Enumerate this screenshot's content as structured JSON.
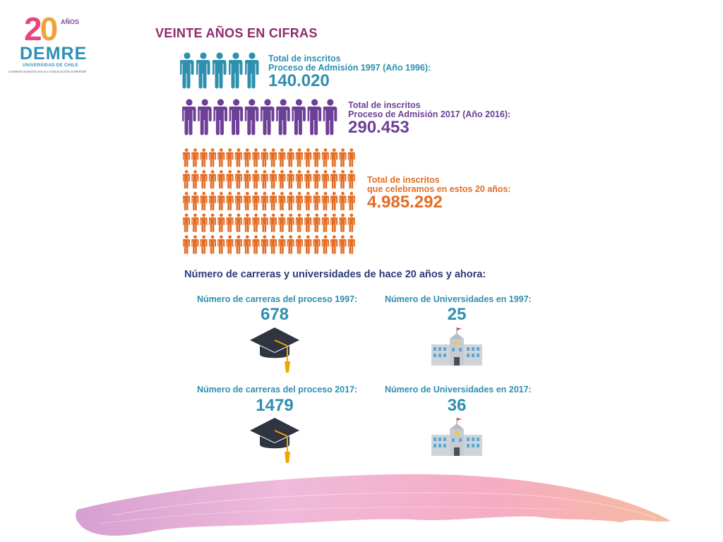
{
  "logo": {
    "twenty_2": "2",
    "twenty_0": "0",
    "anos": "AÑOS",
    "name": "DEMRE",
    "university": "UNIVERSIDAD DE CHILE",
    "tagline": "CAMINOS NUEVOS HACIA LA EDUCACIÓN SUPERIOR"
  },
  "title": "VEINTE AÑOS EN CIFRAS",
  "groups": [
    {
      "label_line1": "Total de inscritos",
      "label_line2": "Proceso de Admisión 1997  (Año 1996):",
      "value": "140.020",
      "color": "#2e8fae",
      "icon": "person-icon",
      "icon_count": 5
    },
    {
      "label_line1": "Total de inscritos",
      "label_line2": "Proceso de Admisión 2017 (Año 2016):",
      "value": "290.453",
      "color": "#6e3f96",
      "icon": "person-icon",
      "icon_count": 10
    },
    {
      "label_line1": "Total de inscritos",
      "label_line2": "que celebramos en estos 20 años:",
      "value": "4.985.292",
      "color": "#e36d25",
      "icon": "person-icon",
      "icon_count": 100
    }
  ],
  "subheading": "Número de carreras y universidades de hace 20 años y ahora:",
  "stats": {
    "careers_1997": {
      "label": "Número de carreras del proceso 1997:",
      "value": "678",
      "icon": "graduation-cap-icon"
    },
    "universities_1997": {
      "label": "Número de Universidades en 1997:",
      "value": "25",
      "icon": "university-building-icon"
    },
    "careers_2017": {
      "label": "Número de carreras del proceso 2017:",
      "value": "1479",
      "icon": "graduation-cap-icon"
    },
    "universities_2017": {
      "label": "Número de Universidades en 2017:",
      "value": "36",
      "icon": "university-building-icon"
    }
  },
  "colors": {
    "title": "#8e2b6e",
    "stat_blue": "#2e8fae",
    "navy": "#2c3a7a",
    "cap": "#2e3440",
    "tassel": "#f0a500",
    "brush_start": "#d39bd0",
    "brush_end": "#f6b79a"
  }
}
